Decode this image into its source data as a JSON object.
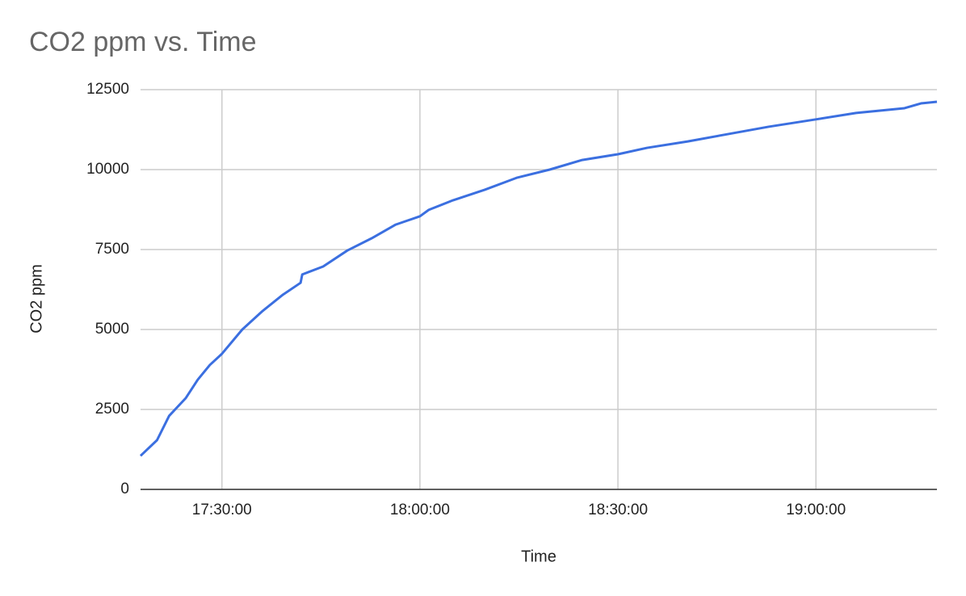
{
  "chart_data": {
    "type": "line",
    "title": "CO2 ppm vs. Time",
    "x_label": "Time",
    "y_label": "CO2 ppm",
    "x": [
      "17:17:40",
      "17:20:10",
      "17:22:00",
      "17:24:30",
      "17:26:20",
      "17:28:10",
      "17:30:00",
      "17:33:05",
      "17:36:10",
      "17:39:15",
      "17:41:55",
      "17:42:10",
      "17:45:20",
      "17:49:00",
      "17:52:40",
      "17:56:20",
      "18:00:00",
      "18:01:20",
      "18:05:00",
      "18:09:50",
      "18:14:45",
      "18:19:40",
      "18:24:35",
      "18:30:00",
      "18:34:25",
      "18:40:35",
      "18:46:40",
      "18:52:50",
      "19:00:00",
      "19:06:05",
      "19:13:25",
      "19:15:55",
      "19:18:20"
    ],
    "series": [
      {
        "name": "CO2 ppm",
        "color": "#3b6fe0",
        "values": [
          1050,
          1540,
          2300,
          2850,
          3430,
          3890,
          4240,
          5000,
          5580,
          6090,
          6460,
          6720,
          6970,
          7470,
          7850,
          8280,
          8540,
          8740,
          9040,
          9370,
          9750,
          10000,
          10300,
          10480,
          10680,
          10880,
          11110,
          11340,
          11570,
          11770,
          11920,
          12070,
          12120
        ]
      }
    ],
    "xlim": [
      "17:17:40",
      "19:18:20"
    ],
    "xticks": [
      "17:30:00",
      "18:00:00",
      "18:30:00",
      "19:00:00"
    ],
    "ylim": [
      0,
      12500
    ],
    "yticks": [
      0,
      2500,
      5000,
      7500,
      10000,
      12500
    ],
    "grid": true
  }
}
